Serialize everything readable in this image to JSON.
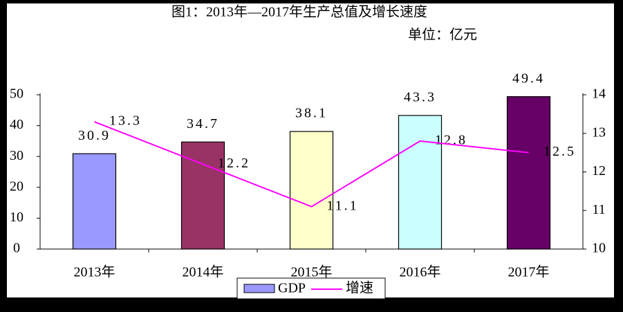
{
  "chart_data": {
    "type": "bar",
    "title": "图1：2013年—2017年生产总值及增长速度",
    "subtitle": "单位：亿元",
    "categories": [
      "2013年",
      "2014年",
      "2015年",
      "2016年",
      "2017年"
    ],
    "series": [
      {
        "name": "GDP",
        "type": "bar",
        "colors": [
          "#9999ff",
          "#993366",
          "#ffffcc",
          "#ccffff",
          "#660066"
        ],
        "values": [
          30.9,
          34.7,
          38.1,
          43.3,
          49.4
        ]
      },
      {
        "name": "增速",
        "type": "line",
        "axis": "y2",
        "color": "#ff00ff",
        "values": [
          13.3,
          12.2,
          11.1,
          12.8,
          12.5
        ]
      }
    ],
    "ylim": [
      0,
      50
    ],
    "yticks": [
      0,
      10,
      20,
      30,
      40,
      50
    ],
    "y2lim": [
      10,
      14
    ],
    "y2ticks": [
      10,
      11,
      12,
      13,
      14
    ],
    "grid": false,
    "legend": "bottom"
  }
}
